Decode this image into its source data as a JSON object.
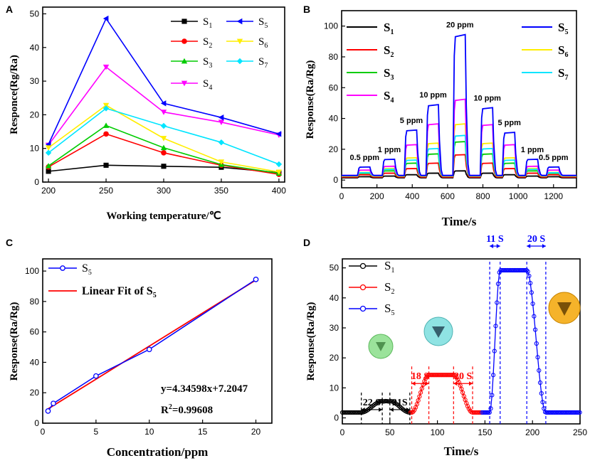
{
  "colors": {
    "S1": "#000000",
    "S2": "#ff0000",
    "S3": "#00cc00",
    "S4": "#ff00ff",
    "S5": "#0000ff",
    "S6": "#ffee00",
    "S7": "#00e5ff",
    "fit": "#ff0000"
  },
  "chart_data": [
    {
      "panel_label": "A",
      "type": "line",
      "xlabel": "Working temperature/℃",
      "ylabel": "Responce(Rg/Ra)",
      "xlim": [
        195,
        405
      ],
      "ylim": [
        0,
        52
      ],
      "xticks": [
        "200",
        "250",
        "300",
        "350",
        "400"
      ],
      "yticks": [
        "0",
        "10",
        "20",
        "30",
        "40",
        "50"
      ],
      "x": [
        200,
        250,
        300,
        350,
        400
      ],
      "series": [
        {
          "name": "S1",
          "sub": "1",
          "marker": "square",
          "values": [
            3.2,
            5.0,
            4.7,
            4.4,
            2.8
          ]
        },
        {
          "name": "S2",
          "sub": "2",
          "marker": "circle",
          "values": [
            4.5,
            14.3,
            8.7,
            5.0,
            2.3
          ]
        },
        {
          "name": "S3",
          "sub": "3",
          "marker": "triangle-up",
          "values": [
            4.8,
            16.8,
            10.2,
            5.2,
            2.6
          ]
        },
        {
          "name": "S4",
          "sub": "4",
          "marker": "triangle-down",
          "values": [
            11.0,
            34.2,
            20.8,
            17.8,
            14.0
          ]
        },
        {
          "name": "S5",
          "sub": "5",
          "marker": "triangle-left",
          "values": [
            11.2,
            48.6,
            23.4,
            19.2,
            14.3
          ]
        },
        {
          "name": "S6",
          "sub": "6",
          "marker": "triangle-down",
          "values": [
            10.2,
            22.8,
            13.0,
            6.0,
            3.0
          ]
        },
        {
          "name": "S7",
          "sub": "7",
          "marker": "diamond",
          "values": [
            8.7,
            21.9,
            16.7,
            11.8,
            5.3
          ]
        }
      ]
    },
    {
      "panel_label": "B",
      "type": "line",
      "xlabel": "Time/s",
      "ylabel": "Response(Ra/Rg)",
      "xlim": [
        0,
        1330
      ],
      "ylim": [
        -5,
        110
      ],
      "xticks": [
        "0",
        "200",
        "400",
        "600",
        "800",
        "1000",
        "1200"
      ],
      "yticks": [
        "0",
        "20",
        "40",
        "60",
        "80",
        "100"
      ],
      "pulse_starts": [
        90,
        230,
        355,
        478,
        630,
        785,
        910,
        1040,
        1160
      ],
      "pulse_width": 80,
      "concentrations_ppm": [
        0.5,
        1,
        5,
        10,
        20,
        10,
        5,
        1,
        0.5
      ],
      "annotations": [
        "0.5 ppm",
        "1 ppm",
        "5 ppm",
        "10 ppm",
        "20 ppm",
        "10 ppm",
        "5 ppm",
        "1 ppm",
        "0.5 ppm"
      ],
      "series": [
        {
          "name": "S1",
          "sub": "1",
          "baseline": 1.5,
          "peaks": [
            2.2,
            2.6,
            3.5,
            4.5,
            6.0,
            4.5,
            3.5,
            2.6,
            2.2
          ]
        },
        {
          "name": "S2",
          "sub": "2",
          "baseline": 2.0,
          "peaks": [
            3.5,
            4.5,
            7.5,
            11.0,
            16.5,
            11.0,
            7.5,
            4.5,
            3.5
          ]
        },
        {
          "name": "S3",
          "sub": "3",
          "baseline": 2.5,
          "peaks": [
            4.5,
            6.0,
            11.0,
            17.0,
            25.0,
            17.0,
            11.0,
            6.0,
            4.5
          ]
        },
        {
          "name": "S4",
          "sub": "4",
          "baseline": 3.0,
          "peaks": [
            6.5,
            9.0,
            23.0,
            36.5,
            52.5,
            36.0,
            23.0,
            9.0,
            6.5
          ]
        },
        {
          "name": "S5",
          "sub": "5",
          "baseline": 3.0,
          "peaks": [
            8.5,
            13.5,
            32.5,
            49.0,
            94.5,
            47.0,
            31.0,
            13.5,
            8.5
          ]
        },
        {
          "name": "S6",
          "sub": "6",
          "baseline": 2.5,
          "peaks": [
            5.0,
            7.5,
            14.5,
            24.0,
            36.5,
            24.0,
            14.5,
            7.5,
            5.0
          ]
        },
        {
          "name": "S7",
          "sub": "7",
          "baseline": 2.8,
          "peaks": [
            4.8,
            7.0,
            13.0,
            20.5,
            29.0,
            20.5,
            13.0,
            7.0,
            4.8
          ]
        }
      ]
    },
    {
      "panel_label": "C",
      "type": "scatter",
      "xlabel": "Concentration/ppm",
      "ylabel": "Response(Ra/Rg)",
      "xlim": [
        0,
        21.5
      ],
      "ylim": [
        0,
        108
      ],
      "xticks": [
        "0",
        "5",
        "10",
        "15",
        "20"
      ],
      "yticks": [
        "0",
        "20",
        "40",
        "60",
        "80",
        "100"
      ],
      "series": [
        {
          "name": "S5",
          "sub": "5",
          "x": [
            0.5,
            1,
            5,
            10,
            20
          ],
          "values": [
            8.0,
            13.0,
            31.0,
            48.5,
            94.5
          ]
        }
      ],
      "fit": {
        "name": "Linear Fit of S5",
        "label_prefix": "Linear Fit of S",
        "sub": "5",
        "slope": 4.34598,
        "intercept": 7.2047,
        "x_range": [
          0.5,
          20
        ]
      },
      "equation": "y=4.34598x+7.2047",
      "r2_prefix": "R",
      "r2_sup": "2",
      "r2_value": "=0.99608"
    },
    {
      "panel_label": "D",
      "type": "line",
      "xlabel": "Time/s",
      "ylabel": "Response(Ra/Rg)",
      "xlim": [
        0,
        250
      ],
      "ylim": [
        -2,
        53
      ],
      "xticks": [
        "0",
        "50",
        "100",
        "150",
        "200",
        "250"
      ],
      "yticks": [
        "0",
        "10",
        "20",
        "30",
        "40",
        "50"
      ],
      "series": [
        {
          "name": "S1",
          "sub": "1",
          "t_start": 0,
          "t_end": 72,
          "baseline": 1.8,
          "peak": 5.6,
          "rise": [
            20,
            42
          ],
          "fall": [
            50,
            71
          ]
        },
        {
          "name": "S2",
          "sub": "2",
          "t_start": 72,
          "t_end": 147,
          "baseline": 1.8,
          "peak": 14.3,
          "rise": [
            73,
            91
          ],
          "fall": [
            117,
            137
          ]
        },
        {
          "name": "S5",
          "sub": "5",
          "t_start": 147,
          "t_end": 250,
          "baseline": 1.8,
          "peak": 49.2,
          "rise": [
            155,
            166
          ],
          "fall": [
            194,
            214
          ]
        }
      ],
      "time_labels": [
        "22 S",
        "21S",
        "18 S",
        "20 S",
        "11 S",
        "20 S"
      ]
    }
  ]
}
